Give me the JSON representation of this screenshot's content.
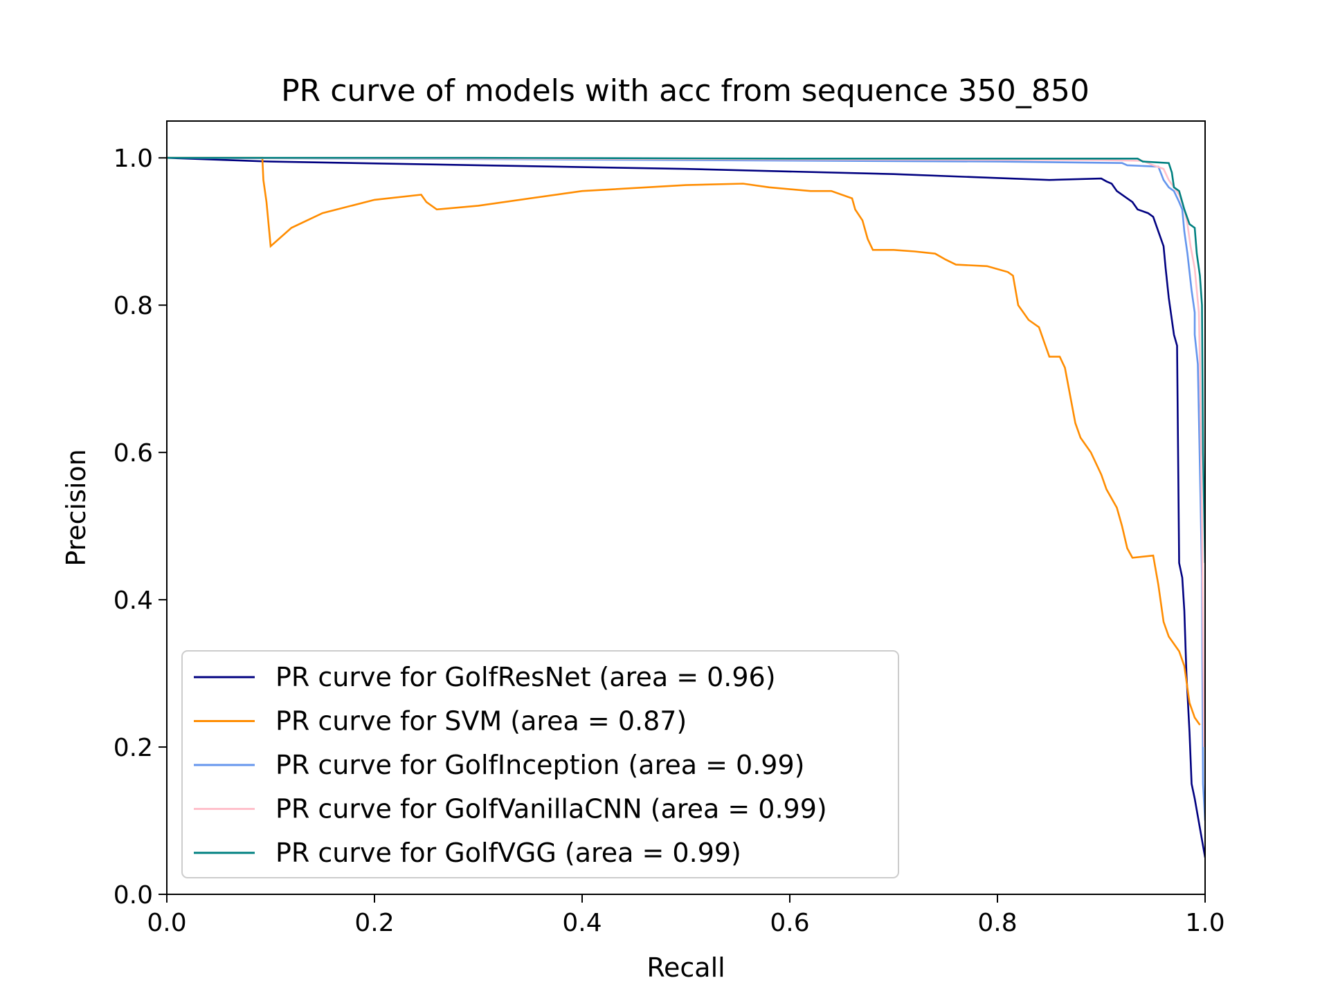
{
  "chart_data": {
    "type": "line",
    "title": "PR curve of models with acc from sequence 350_850",
    "xlabel": "Recall",
    "ylabel": "Precision",
    "xlim": [
      0.0,
      1.0
    ],
    "ylim": [
      0.0,
      1.05
    ],
    "xticks": [
      "0.0",
      "0.2",
      "0.4",
      "0.6",
      "0.8",
      "1.0"
    ],
    "yticks": [
      "0.0",
      "0.2",
      "0.4",
      "0.6",
      "0.8",
      "1.0"
    ],
    "grid": false,
    "legend_position": "lower-left",
    "series": [
      {
        "name": "PR curve for GolfResNet (area = 0.96)",
        "color": "#000080",
        "points": [
          [
            0.0,
            1.0
          ],
          [
            0.1,
            0.995
          ],
          [
            0.3,
            0.99
          ],
          [
            0.5,
            0.985
          ],
          [
            0.7,
            0.978
          ],
          [
            0.85,
            0.97
          ],
          [
            0.9,
            0.972
          ],
          [
            0.905,
            0.968
          ],
          [
            0.91,
            0.965
          ],
          [
            0.915,
            0.955
          ],
          [
            0.925,
            0.945
          ],
          [
            0.93,
            0.94
          ],
          [
            0.935,
            0.93
          ],
          [
            0.945,
            0.925
          ],
          [
            0.95,
            0.92
          ],
          [
            0.955,
            0.9
          ],
          [
            0.96,
            0.88
          ],
          [
            0.962,
            0.85
          ],
          [
            0.965,
            0.81
          ],
          [
            0.97,
            0.76
          ],
          [
            0.973,
            0.745
          ],
          [
            0.975,
            0.45
          ],
          [
            0.978,
            0.43
          ],
          [
            0.98,
            0.385
          ],
          [
            0.982,
            0.3
          ],
          [
            0.985,
            0.22
          ],
          [
            0.987,
            0.15
          ],
          [
            0.99,
            0.13
          ],
          [
            1.0,
            0.05
          ]
        ]
      },
      {
        "name": "PR curve for SVM (area = 0.87)",
        "color": "#FF8C00",
        "points": [
          [
            0.0,
            1.0
          ],
          [
            0.092,
            1.0
          ],
          [
            0.093,
            0.97
          ],
          [
            0.096,
            0.94
          ],
          [
            0.1,
            0.88
          ],
          [
            0.12,
            0.905
          ],
          [
            0.15,
            0.925
          ],
          [
            0.2,
            0.943
          ],
          [
            0.245,
            0.95
          ],
          [
            0.25,
            0.94
          ],
          [
            0.26,
            0.93
          ],
          [
            0.3,
            0.935
          ],
          [
            0.4,
            0.955
          ],
          [
            0.5,
            0.963
          ],
          [
            0.555,
            0.965
          ],
          [
            0.58,
            0.96
          ],
          [
            0.62,
            0.955
          ],
          [
            0.64,
            0.955
          ],
          [
            0.66,
            0.945
          ],
          [
            0.663,
            0.93
          ],
          [
            0.67,
            0.915
          ],
          [
            0.675,
            0.89
          ],
          [
            0.68,
            0.875
          ],
          [
            0.7,
            0.875
          ],
          [
            0.72,
            0.873
          ],
          [
            0.74,
            0.87
          ],
          [
            0.75,
            0.862
          ],
          [
            0.76,
            0.855
          ],
          [
            0.79,
            0.853
          ],
          [
            0.81,
            0.845
          ],
          [
            0.815,
            0.84
          ],
          [
            0.82,
            0.8
          ],
          [
            0.83,
            0.78
          ],
          [
            0.84,
            0.77
          ],
          [
            0.845,
            0.75
          ],
          [
            0.85,
            0.73
          ],
          [
            0.86,
            0.73
          ],
          [
            0.865,
            0.715
          ],
          [
            0.875,
            0.64
          ],
          [
            0.88,
            0.62
          ],
          [
            0.89,
            0.6
          ],
          [
            0.9,
            0.57
          ],
          [
            0.905,
            0.55
          ],
          [
            0.915,
            0.525
          ],
          [
            0.92,
            0.5
          ],
          [
            0.925,
            0.47
          ],
          [
            0.93,
            0.457
          ],
          [
            0.95,
            0.46
          ],
          [
            0.955,
            0.42
          ],
          [
            0.96,
            0.37
          ],
          [
            0.965,
            0.35
          ],
          [
            0.975,
            0.33
          ],
          [
            0.98,
            0.31
          ],
          [
            0.985,
            0.26
          ],
          [
            0.99,
            0.24
          ],
          [
            0.995,
            0.23
          ]
        ]
      },
      {
        "name": "PR curve for GolfInception (area = 0.99)",
        "color": "#6495ED",
        "points": [
          [
            0.0,
            1.0
          ],
          [
            0.2,
            0.999
          ],
          [
            0.5,
            0.997
          ],
          [
            0.8,
            0.995
          ],
          [
            0.92,
            0.993
          ],
          [
            0.925,
            0.99
          ],
          [
            0.955,
            0.988
          ],
          [
            0.96,
            0.97
          ],
          [
            0.965,
            0.96
          ],
          [
            0.97,
            0.955
          ],
          [
            0.975,
            0.94
          ],
          [
            0.978,
            0.93
          ],
          [
            0.98,
            0.9
          ],
          [
            0.983,
            0.87
          ],
          [
            0.985,
            0.845
          ],
          [
            0.987,
            0.82
          ],
          [
            0.99,
            0.79
          ],
          [
            0.99,
            0.76
          ],
          [
            0.993,
            0.72
          ],
          [
            0.995,
            0.58
          ],
          [
            0.997,
            0.43
          ],
          [
            0.998,
            0.15
          ],
          [
            1.0,
            0.1
          ]
        ]
      },
      {
        "name": "PR curve for GolfVanillaCNN (area = 0.99)",
        "color": "#FFC0CB",
        "points": [
          [
            0.0,
            1.0
          ],
          [
            0.3,
            0.999
          ],
          [
            0.6,
            0.998
          ],
          [
            0.9,
            0.997
          ],
          [
            0.94,
            0.996
          ],
          [
            0.95,
            0.99
          ],
          [
            0.96,
            0.985
          ],
          [
            0.965,
            0.97
          ],
          [
            0.97,
            0.96
          ],
          [
            0.975,
            0.95
          ],
          [
            0.98,
            0.93
          ],
          [
            0.983,
            0.91
          ],
          [
            0.986,
            0.88
          ],
          [
            0.99,
            0.85
          ],
          [
            0.992,
            0.82
          ],
          [
            0.994,
            0.79
          ],
          [
            0.995,
            0.72
          ],
          [
            0.997,
            0.5
          ],
          [
            0.999,
            0.2
          ]
        ]
      },
      {
        "name": "PR curve for GolfVGG (area = 0.99)",
        "color": "#008080",
        "points": [
          [
            0.0,
            1.0
          ],
          [
            0.3,
            1.0
          ],
          [
            0.6,
            0.999
          ],
          [
            0.9,
            0.999
          ],
          [
            0.935,
            0.999
          ],
          [
            0.94,
            0.995
          ],
          [
            0.965,
            0.993
          ],
          [
            0.968,
            0.98
          ],
          [
            0.97,
            0.96
          ],
          [
            0.975,
            0.955
          ],
          [
            0.978,
            0.94
          ],
          [
            0.98,
            0.93
          ],
          [
            0.985,
            0.91
          ],
          [
            0.99,
            0.905
          ],
          [
            0.992,
            0.87
          ],
          [
            0.995,
            0.84
          ],
          [
            0.997,
            0.8
          ],
          [
            0.998,
            0.6
          ],
          [
            1.0,
            0.45
          ]
        ]
      }
    ]
  }
}
